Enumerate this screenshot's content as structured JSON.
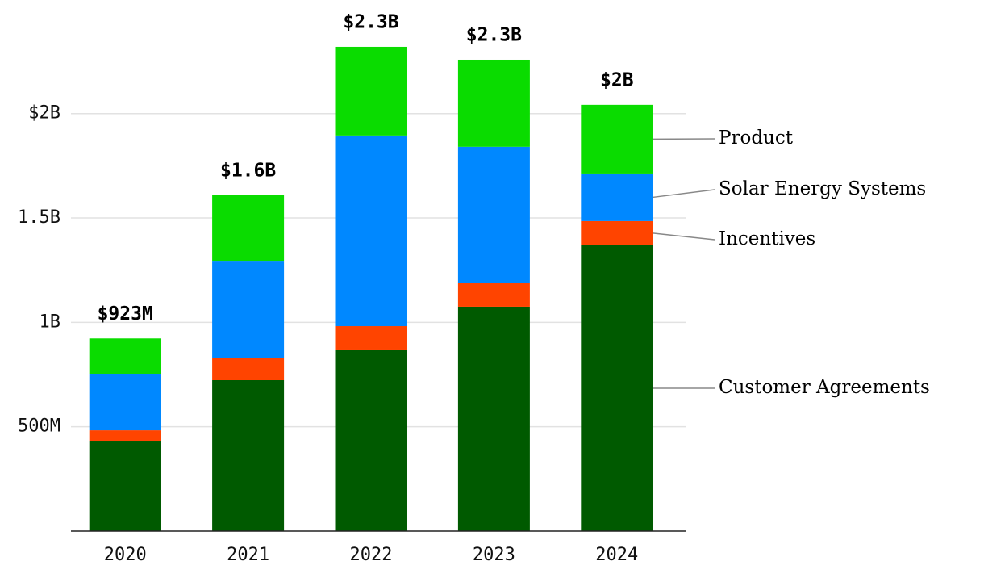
{
  "chart_data": {
    "type": "stacked_bar",
    "categories": [
      "2020",
      "2021",
      "2022",
      "2023",
      "2024"
    ],
    "series": [
      {
        "name": "Customer Agreements",
        "color": "#005a00",
        "values": [
          433000000,
          723000000,
          870000000,
          1075000000,
          1369000000
        ]
      },
      {
        "name": "Incentives",
        "color": "#ff4400",
        "values": [
          50000000,
          105000000,
          112000000,
          112000000,
          116000000
        ]
      },
      {
        "name": "Solar Energy Systems",
        "color": "#0088ff",
        "values": [
          271000000,
          467000000,
          913000000,
          654000000,
          228000000
        ]
      },
      {
        "name": "Product",
        "color": "#0adc00",
        "values": [
          169000000,
          314000000,
          425000000,
          417000000,
          329000000
        ]
      }
    ],
    "totals": {
      "values": [
        923000000,
        1609000000,
        2320000000,
        2258000000,
        2042000000
      ],
      "value_labels": [
        "$923M",
        "$1.6B",
        "$2.3B",
        "$2.3B",
        "$2B"
      ]
    },
    "ylim": [
      0,
      2500000000
    ],
    "yticks": [
      {
        "value": 500000000,
        "label": "500M"
      },
      {
        "value": 1000000000,
        "label": "1B"
      },
      {
        "value": 1500000000,
        "label": "1.5B"
      },
      {
        "value": 2000000000,
        "label": "$2B"
      }
    ],
    "grid": true,
    "legend": "right"
  }
}
